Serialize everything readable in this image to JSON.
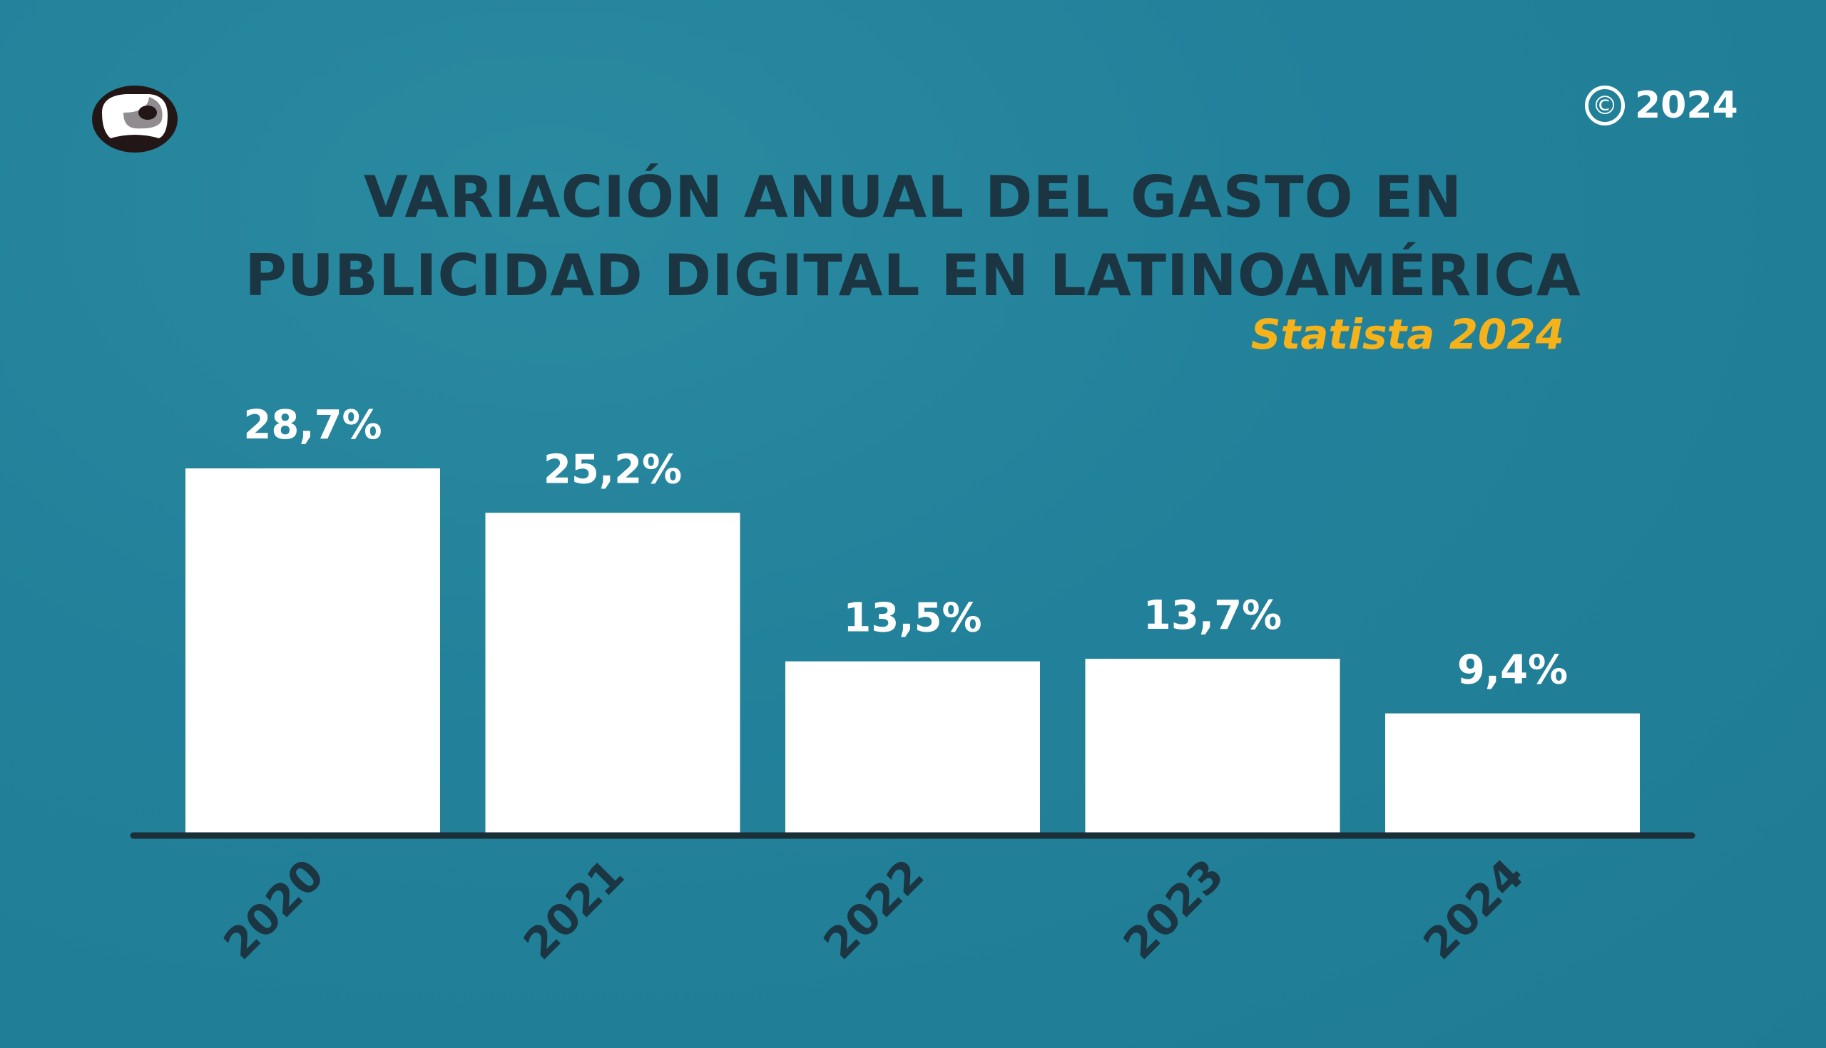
{
  "header": {
    "title_line1": "VARIACIÓN ANUAL DEL GASTO EN",
    "title_line2": "PUBLICIDAD DIGITAL EN LATINOAMÉRICA",
    "subtitle": "Statista 2024",
    "copyright_symbol": "©",
    "copyright_year": "2024",
    "logo_icon": "eye-logo-icon"
  },
  "colors": {
    "background": "#22829a",
    "bars": "#ffffff",
    "title": "#1b3642",
    "subtitle": "#f5b21b",
    "axis": "#1b2f38"
  },
  "chart_data": {
    "type": "bar",
    "title": "VARIACIÓN ANUAL DEL GASTO EN PUBLICIDAD DIGITAL EN LATINOAMÉRICA",
    "subtitle": "Statista 2024",
    "categories": [
      "2020",
      "2021",
      "2022",
      "2023",
      "2024"
    ],
    "values": [
      28.7,
      25.2,
      13.5,
      13.7,
      9.4
    ],
    "data_labels": [
      "28,7%",
      "25,2%",
      "13,5%",
      "13,7%",
      "9,4%"
    ],
    "xlabel": "",
    "ylabel": "",
    "ylim": [
      0,
      28.7
    ],
    "grid": false,
    "legend": "none",
    "x_tick_rotation": -45
  }
}
